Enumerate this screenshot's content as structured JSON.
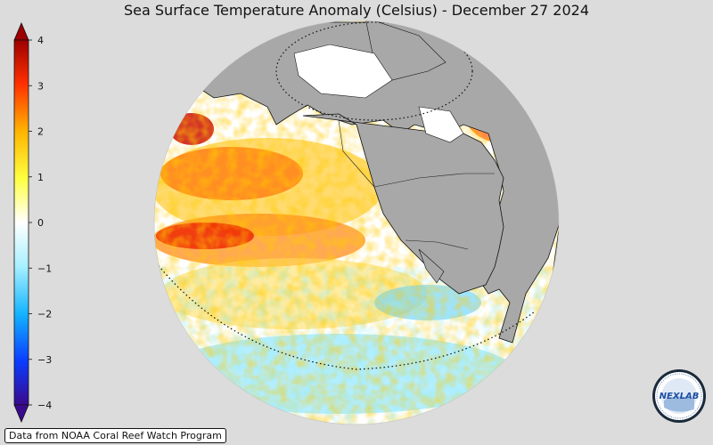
{
  "title": "Sea Surface Temperature Anomaly (Celsius) - December 27 2024",
  "colorbar": {
    "ticks": [
      "4",
      "3",
      "2",
      "1",
      "0",
      "−1",
      "−2",
      "−3",
      "−4"
    ],
    "min": -4,
    "max": 4,
    "colors": [
      "#3a0a8c",
      "#0a3cff",
      "#14b4ff",
      "#a8f0ff",
      "#ffffff",
      "#ffff40",
      "#ffb400",
      "#ff3000",
      "#9c0000"
    ]
  },
  "credit": "Data from NOAA Coral Reef Watch Program",
  "logo": {
    "text": "NEXLAB"
  },
  "map": {
    "ocean_color": "#ffffff",
    "land_color": "#a8a8a8"
  }
}
